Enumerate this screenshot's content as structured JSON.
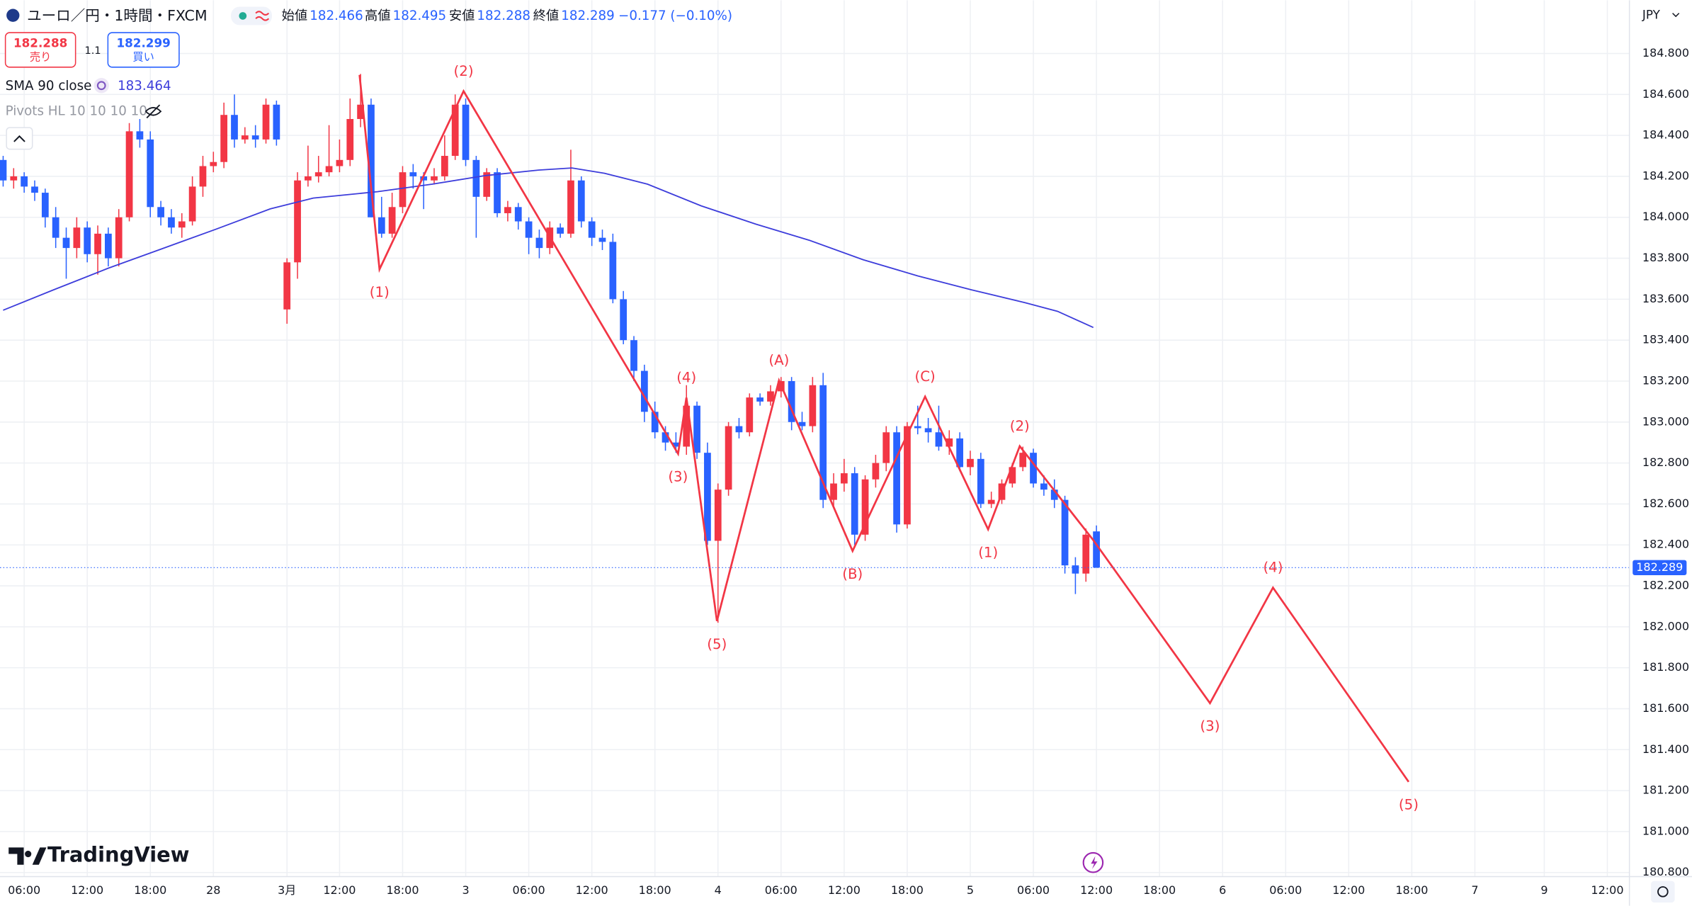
{
  "header": {
    "symbol": "ユーロ／円・1時間・FXCM",
    "open_label": "始値",
    "open": "182.466",
    "high_label": "高値",
    "high": "182.495",
    "low_label": "安値",
    "low": "182.288",
    "close_label": "終値",
    "close": "182.289",
    "change": "−0.177 (−0.10%)"
  },
  "trade": {
    "sell_price": "182.288",
    "sell": "売り",
    "spread": "1.1",
    "buy_price": "182.299",
    "buy": "買い"
  },
  "indicators": [
    {
      "name": "SMA 90 close",
      "value": "183.464"
    },
    {
      "name": "Pivots HL 10 10 10 10"
    }
  ],
  "currency": "JPY",
  "brand": "TradingView",
  "chart_data": {
    "type": "candlestick",
    "up_color": "#f23645",
    "down_color": "#2962ff",
    "candles": [
      [
        184.28,
        184.3,
        184.15,
        184.18
      ],
      [
        184.18,
        184.24,
        184.14,
        184.2
      ],
      [
        184.2,
        184.22,
        184.12,
        184.15
      ],
      [
        184.15,
        184.18,
        184.08,
        184.12
      ],
      [
        184.12,
        184.14,
        183.95,
        184.0
      ],
      [
        184.0,
        184.05,
        183.85,
        183.9
      ],
      [
        183.9,
        183.95,
        183.7,
        183.85
      ],
      [
        183.85,
        184.0,
        183.8,
        183.95
      ],
      [
        183.95,
        183.98,
        183.78,
        183.82
      ],
      [
        183.82,
        183.96,
        183.72,
        183.92
      ],
      [
        183.92,
        183.95,
        183.76,
        183.8
      ],
      [
        183.8,
        184.04,
        183.76,
        184.0
      ],
      [
        184.0,
        184.46,
        183.98,
        184.42
      ],
      [
        184.42,
        184.48,
        184.34,
        184.38
      ],
      [
        184.38,
        184.42,
        184.0,
        184.05
      ],
      [
        184.05,
        184.08,
        183.96,
        184.0
      ],
      [
        184.0,
        184.04,
        183.92,
        183.95
      ],
      [
        183.95,
        184.02,
        183.9,
        183.98
      ],
      [
        183.98,
        184.2,
        183.96,
        184.15
      ],
      [
        184.15,
        184.3,
        184.1,
        184.25
      ],
      [
        184.25,
        184.32,
        184.22,
        184.27
      ],
      [
        184.27,
        184.56,
        184.24,
        184.5
      ],
      [
        184.5,
        184.6,
        184.34,
        184.38
      ],
      [
        184.38,
        184.44,
        184.36,
        184.4
      ],
      [
        184.4,
        184.45,
        184.34,
        184.38
      ],
      [
        184.38,
        184.58,
        184.36,
        184.55
      ],
      [
        184.55,
        184.57,
        184.35,
        184.38
      ],
      [
        183.55,
        183.8,
        183.48,
        183.78
      ],
      [
        183.78,
        184.22,
        183.7,
        184.18
      ],
      [
        184.18,
        184.35,
        184.15,
        184.2
      ],
      [
        184.2,
        184.3,
        184.17,
        184.22
      ],
      [
        184.22,
        184.45,
        184.2,
        184.25
      ],
      [
        184.25,
        184.38,
        184.22,
        184.28
      ],
      [
        184.28,
        184.58,
        184.25,
        184.48
      ],
      [
        184.48,
        184.7,
        184.44,
        184.55
      ],
      [
        184.55,
        184.58,
        184.0,
        184.0
      ],
      [
        184.0,
        184.1,
        183.9,
        183.92
      ],
      [
        183.92,
        184.12,
        183.9,
        184.05
      ],
      [
        184.05,
        184.25,
        184.02,
        184.22
      ],
      [
        184.22,
        184.26,
        184.14,
        184.2
      ],
      [
        184.2,
        184.22,
        184.04,
        184.18
      ],
      [
        184.18,
        184.24,
        184.16,
        184.2
      ],
      [
        184.2,
        184.4,
        184.18,
        184.3
      ],
      [
        184.3,
        184.6,
        184.28,
        184.55
      ],
      [
        184.55,
        184.58,
        184.25,
        184.28
      ],
      [
        184.28,
        184.3,
        183.9,
        184.1
      ],
      [
        184.1,
        184.24,
        184.08,
        184.22
      ],
      [
        184.22,
        184.24,
        184.0,
        184.02
      ],
      [
        184.02,
        184.08,
        183.98,
        184.05
      ],
      [
        184.05,
        184.07,
        183.94,
        183.98
      ],
      [
        183.98,
        184.0,
        183.82,
        183.9
      ],
      [
        183.9,
        183.94,
        183.8,
        183.85
      ],
      [
        183.85,
        183.98,
        183.82,
        183.95
      ],
      [
        183.95,
        183.97,
        183.9,
        183.92
      ],
      [
        183.92,
        184.33,
        183.9,
        184.18
      ],
      [
        184.18,
        184.2,
        183.95,
        183.98
      ],
      [
        183.98,
        184.0,
        183.86,
        183.9
      ],
      [
        183.9,
        183.94,
        183.84,
        183.88
      ],
      [
        183.88,
        183.92,
        183.58,
        183.6
      ],
      [
        183.6,
        183.64,
        183.38,
        183.4
      ],
      [
        183.4,
        183.42,
        183.2,
        183.25
      ],
      [
        183.25,
        183.28,
        183.0,
        183.05
      ],
      [
        183.05,
        183.1,
        182.92,
        182.95
      ],
      [
        182.95,
        182.98,
        182.86,
        182.9
      ],
      [
        182.9,
        182.95,
        182.85,
        182.88
      ],
      [
        182.88,
        183.18,
        182.84,
        183.08
      ],
      [
        183.08,
        183.1,
        182.82,
        182.85
      ],
      [
        182.85,
        182.9,
        182.4,
        182.42
      ],
      [
        182.42,
        182.7,
        182.02,
        182.67
      ],
      [
        182.67,
        183.0,
        182.64,
        182.98
      ],
      [
        182.98,
        183.02,
        182.92,
        182.95
      ],
      [
        182.95,
        183.14,
        182.93,
        183.12
      ],
      [
        183.12,
        183.14,
        183.08,
        183.1
      ],
      [
        183.1,
        183.18,
        183.08,
        183.15
      ],
      [
        183.15,
        183.22,
        183.12,
        183.2
      ],
      [
        183.2,
        183.22,
        182.96,
        183.0
      ],
      [
        183.0,
        183.05,
        182.96,
        182.98
      ],
      [
        182.98,
        183.22,
        182.95,
        183.18
      ],
      [
        183.18,
        183.24,
        182.58,
        182.62
      ],
      [
        182.62,
        182.75,
        182.58,
        182.7
      ],
      [
        182.7,
        182.82,
        182.66,
        182.75
      ],
      [
        182.75,
        182.78,
        182.4,
        182.45
      ],
      [
        182.45,
        182.74,
        182.42,
        182.72
      ],
      [
        182.72,
        182.84,
        182.68,
        182.8
      ],
      [
        182.8,
        182.98,
        182.76,
        182.95
      ],
      [
        182.95,
        182.98,
        182.46,
        182.5
      ],
      [
        182.5,
        183.0,
        182.48,
        182.98
      ],
      [
        182.98,
        183.08,
        182.94,
        182.97
      ],
      [
        182.97,
        183.02,
        182.9,
        182.95
      ],
      [
        182.95,
        183.08,
        182.86,
        182.88
      ],
      [
        182.88,
        182.96,
        182.84,
        182.92
      ],
      [
        182.92,
        182.95,
        182.76,
        182.78
      ],
      [
        182.78,
        182.86,
        182.74,
        182.82
      ],
      [
        182.82,
        182.85,
        182.58,
        182.6
      ],
      [
        182.6,
        182.66,
        182.58,
        182.62
      ],
      [
        182.62,
        182.72,
        182.6,
        182.7
      ],
      [
        182.7,
        182.8,
        182.68,
        182.78
      ],
      [
        182.78,
        182.88,
        182.76,
        182.85
      ],
      [
        182.85,
        182.87,
        182.68,
        182.7
      ],
      [
        182.7,
        182.74,
        182.64,
        182.67
      ],
      [
        182.67,
        182.72,
        182.58,
        182.62
      ],
      [
        182.62,
        182.64,
        182.26,
        182.3
      ],
      [
        182.3,
        182.34,
        182.16,
        182.26
      ],
      [
        182.26,
        182.48,
        182.22,
        182.45
      ],
      [
        182.466,
        182.495,
        182.288,
        182.289
      ]
    ],
    "ylim": [
      180.78,
      185.06
    ],
    "yticks": [
      {
        "value": 184.8,
        "label": "184.800"
      },
      {
        "value": 184.6,
        "label": "184.600"
      },
      {
        "value": 184.4,
        "label": "184.400"
      },
      {
        "value": 184.2,
        "label": "184.200"
      },
      {
        "value": 184.0,
        "label": "184.000"
      },
      {
        "value": 183.8,
        "label": "183.800"
      },
      {
        "value": 183.6,
        "label": "183.600"
      },
      {
        "value": 183.4,
        "label": "183.400"
      },
      {
        "value": 183.2,
        "label": "183.200"
      },
      {
        "value": 183.0,
        "label": "183.000"
      },
      {
        "value": 182.8,
        "label": "182.800"
      },
      {
        "value": 182.6,
        "label": "182.600"
      },
      {
        "value": 182.4,
        "label": "182.400"
      },
      {
        "value": 182.2,
        "label": "182.200"
      },
      {
        "value": 182.0,
        "label": "182.000"
      },
      {
        "value": 181.8,
        "label": "181.800"
      },
      {
        "value": 181.6,
        "label": "181.600"
      },
      {
        "value": 181.4,
        "label": "181.400"
      },
      {
        "value": 181.2,
        "label": "181.200"
      },
      {
        "value": 181.0,
        "label": "181.000"
      },
      {
        "value": 180.8,
        "label": "180.800"
      }
    ],
    "xlim": [
      -0.3,
      154.7
    ],
    "xticks": [
      {
        "value": 2,
        "label": "06:00"
      },
      {
        "value": 8,
        "label": "12:00"
      },
      {
        "value": 14,
        "label": "18:00"
      },
      {
        "value": 20,
        "label": "28"
      },
      {
        "value": 27,
        "label": "3月"
      },
      {
        "value": 32,
        "label": "12:00"
      },
      {
        "value": 38,
        "label": "18:00"
      },
      {
        "value": 44,
        "label": "3"
      },
      {
        "value": 50,
        "label": "06:00"
      },
      {
        "value": 56,
        "label": "12:00"
      },
      {
        "value": 62,
        "label": "18:00"
      },
      {
        "value": 68,
        "label": "4"
      },
      {
        "value": 74,
        "label": "06:00"
      },
      {
        "value": 80,
        "label": "12:00"
      },
      {
        "value": 86,
        "label": "18:00"
      },
      {
        "value": 92,
        "label": "5"
      },
      {
        "value": 98,
        "label": "06:00"
      },
      {
        "value": 104,
        "label": "12:00"
      },
      {
        "value": 110,
        "label": "18:00"
      },
      {
        "value": 116,
        "label": "6"
      },
      {
        "value": 122,
        "label": "06:00"
      },
      {
        "value": 128,
        "label": "12:00"
      },
      {
        "value": 134,
        "label": "18:00"
      },
      {
        "value": 140,
        "label": "7"
      },
      {
        "value": 146.6,
        "label": "9"
      },
      {
        "value": 152.6,
        "label": "12:00"
      }
    ],
    "last_price": 182.289,
    "series": [
      {
        "color": "#3d3ddb",
        "x": [
          0,
          4.8,
          10.0,
          15.1,
          20.2,
          25.4,
          29.5,
          35.6,
          40.8,
          45.9,
          51.0,
          54.1,
          57.2,
          61.3,
          66.4,
          71.6,
          76.7,
          81.8,
          87.0,
          92.1,
          97.2,
          100.3,
          103.7
        ],
        "values": [
          183.546,
          183.646,
          183.751,
          183.846,
          183.941,
          184.041,
          184.094,
          184.125,
          184.162,
          184.204,
          184.231,
          184.241,
          184.215,
          184.162,
          184.056,
          183.967,
          183.888,
          183.793,
          183.714,
          183.646,
          183.583,
          183.541,
          183.462
        ]
      }
    ],
    "wave": {
      "color": "#f23645",
      "x": [
        33.9,
        35.8,
        43.8,
        64.2,
        65.0,
        67.9,
        73.8,
        80.8,
        87.7,
        93.7,
        96.7,
        103.7,
        114.8,
        120.8,
        133.7
      ],
      "values": [
        184.695,
        183.746,
        184.616,
        182.845,
        183.119,
        182.028,
        183.203,
        182.37,
        183.124,
        182.476,
        182.882,
        182.423,
        181.627,
        182.191,
        181.243
      ],
      "labels": [
        null,
        "(1)",
        "(2)",
        "(3)",
        "(4)",
        "(5)",
        "(A)",
        "(B)",
        "(C)",
        "(1)",
        "(2)",
        null,
        "(3)",
        "(4)",
        "(5)"
      ]
    }
  }
}
